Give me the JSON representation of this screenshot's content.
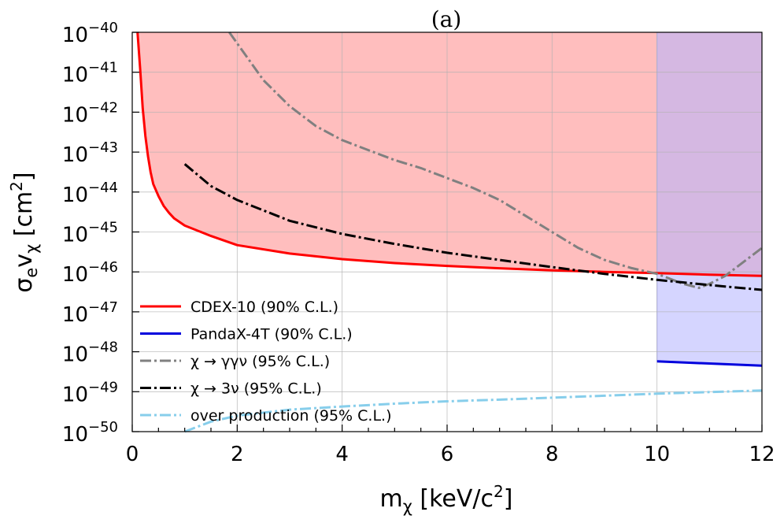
{
  "chart_data": {
    "type": "line",
    "title": "(a)",
    "xlabel_main": "m",
    "xlabel_sub": "χ",
    "xlabel_unit": " [keV/c",
    "xlabel_unit_sup": "2",
    "xlabel_unit_end": "]",
    "ylabel_main": "σ",
    "ylabel_sub1": "e",
    "ylabel_v": "v",
    "ylabel_sub2": "χ",
    "ylabel_unit": " [cm",
    "ylabel_unit_sup": "2",
    "ylabel_unit_end": "]",
    "xlim": [
      0,
      12
    ],
    "ylim_log10": [
      -50,
      -40
    ],
    "x_ticks": [
      0,
      2,
      4,
      6,
      8,
      10,
      12
    ],
    "x_tick_labels": [
      "0",
      "2",
      "4",
      "6",
      "8",
      "10",
      "12"
    ],
    "y_tick_exponents": [
      -40,
      -41,
      -42,
      -43,
      -44,
      -45,
      -46,
      -47,
      -48,
      -49,
      -50
    ],
    "y_tick_base": "10",
    "y_tick_labels": [
      "−40",
      "−41",
      "−42",
      "−43",
      "−44",
      "−45",
      "−46",
      "−47",
      "−48",
      "−49",
      "−50"
    ],
    "grid": true,
    "legend_position": "lower-left",
    "series": [
      {
        "name": "CDEX-10  (90% C.L.)",
        "color": "#ff0000",
        "style": "solid",
        "fill_above": "#ffb3b3",
        "x": [
          0.1,
          0.15,
          0.2,
          0.25,
          0.3,
          0.35,
          0.4,
          0.5,
          0.6,
          0.7,
          0.8,
          1.0,
          1.5,
          2.0,
          3.0,
          4.0,
          5.0,
          6.0,
          7.0,
          8.0,
          9.0,
          10.0,
          11.0,
          12.0
        ],
        "log10_y": [
          -40.0,
          -40.9,
          -41.9,
          -42.6,
          -43.1,
          -43.5,
          -43.8,
          -44.1,
          -44.35,
          -44.52,
          -44.66,
          -44.84,
          -45.1,
          -45.33,
          -45.54,
          -45.68,
          -45.78,
          -45.85,
          -45.91,
          -45.96,
          -46.0,
          -46.03,
          -46.07,
          -46.1
        ]
      },
      {
        "name": "PandaX-4T   (90% C.L.)",
        "color": "#0000dd",
        "style": "solid",
        "fill_above": "#b3b3ff",
        "x": [
          10.0,
          12.0
        ],
        "log10_y": [
          -48.24,
          -48.35
        ]
      },
      {
        "name": "χ → γγν  (95% C.L.)",
        "color": "#808080",
        "style": "dashdot",
        "x": [
          1.85,
          2.5,
          3.0,
          3.5,
          4.0,
          4.5,
          5.0,
          5.5,
          6.0,
          6.5,
          7.0,
          7.5,
          8.0,
          8.5,
          9.0,
          9.5,
          10.0,
          10.5,
          10.8,
          11.0,
          11.3,
          11.6,
          12.0
        ],
        "log10_y": [
          -40.0,
          -41.2,
          -41.85,
          -42.35,
          -42.7,
          -42.95,
          -43.2,
          -43.4,
          -43.65,
          -43.9,
          -44.2,
          -44.6,
          -45.0,
          -45.4,
          -45.7,
          -45.9,
          -46.05,
          -46.3,
          -46.4,
          -46.3,
          -46.1,
          -45.8,
          -45.4
        ]
      },
      {
        "name": "χ → 3ν  (95% C.L.)",
        "color": "#000000",
        "style": "dashdot",
        "x": [
          1.0,
          1.5,
          2.0,
          3.0,
          4.0,
          5.0,
          6.0,
          7.0,
          8.0,
          9.0,
          10.0,
          11.0,
          12.0
        ],
        "log10_y": [
          -43.3,
          -43.85,
          -44.2,
          -44.72,
          -45.05,
          -45.3,
          -45.52,
          -45.7,
          -45.88,
          -46.05,
          -46.2,
          -46.33,
          -46.45
        ]
      },
      {
        "name": "over production  (95% C.L.)",
        "color": "#87ceeb",
        "style": "dashdot",
        "x": [
          1.0,
          1.5,
          2.0,
          3.0,
          4.0,
          5.0,
          6.0,
          7.0,
          8.0,
          9.0,
          10.0,
          11.0,
          12.0
        ],
        "log10_y": [
          -50.0,
          -49.75,
          -49.6,
          -49.45,
          -49.37,
          -49.3,
          -49.24,
          -49.2,
          -49.15,
          -49.1,
          -49.05,
          -49.01,
          -48.97
        ]
      }
    ]
  }
}
